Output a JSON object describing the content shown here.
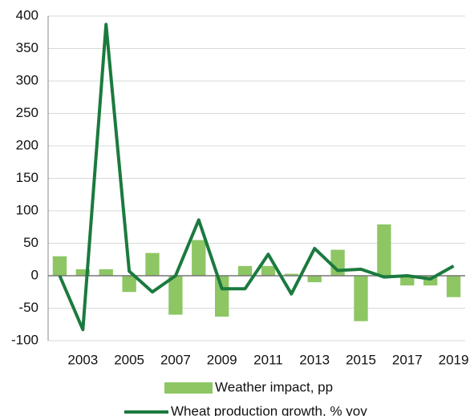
{
  "chart_data": {
    "type": "bar",
    "categories": [
      null,
      "2003",
      null,
      "2005",
      null,
      "2007",
      null,
      "2009",
      null,
      "2011",
      null,
      "2013",
      null,
      "2015",
      null,
      "2017",
      null,
      "2019"
    ],
    "series": [
      {
        "name": "Weather impact, pp",
        "type": "bar",
        "color": "#8dc663",
        "values": [
          30,
          10,
          10,
          -25,
          35,
          -60,
          55,
          -63,
          15,
          15,
          3,
          -10,
          40,
          -70,
          79,
          -15,
          -15,
          -33
        ]
      },
      {
        "name": "Wheat production growth, % yoy",
        "type": "line",
        "color": "#1b7a3e",
        "values": [
          0,
          -83,
          387,
          7,
          -25,
          0,
          86,
          -20,
          -20,
          33,
          -28,
          42,
          8,
          10,
          -2,
          0,
          -5,
          15
        ]
      }
    ],
    "ylim": [
      -100,
      400
    ],
    "yticks": [
      -100,
      -50,
      0,
      50,
      100,
      150,
      200,
      250,
      300,
      350,
      400
    ],
    "grid": true
  }
}
